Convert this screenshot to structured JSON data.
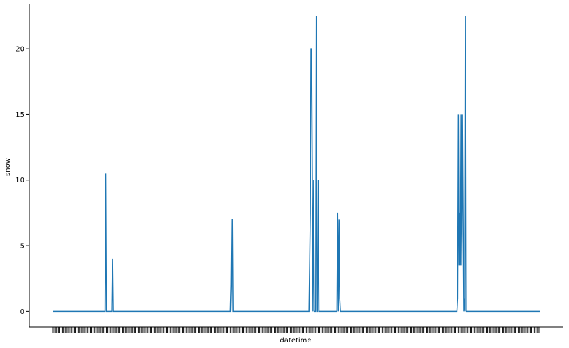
{
  "chart_data": {
    "type": "line",
    "title": "",
    "xlabel": "datetime",
    "ylabel": "snow",
    "ylim": [
      -1.2,
      23.4
    ],
    "yticks": [
      0,
      5,
      10,
      15,
      20
    ],
    "x_tick_count": 366,
    "series": [
      {
        "color": "#1f77b4",
        "x": [
          0,
          39,
          39.5,
          40,
          40.5,
          44,
          44.5,
          45,
          45.5,
          133,
          133.5,
          134,
          134.5,
          135,
          135.5,
          192,
          192.5,
          193,
          193.5,
          194,
          194.5,
          195,
          195.5,
          196,
          196.5,
          197,
          197.5,
          198,
          198.5,
          199,
          199.5,
          200,
          200.5,
          201,
          201.5,
          202,
          202.5,
          203,
          203.5,
          204,
          204.5,
          205,
          205.5,
          213,
          213.5,
          214,
          214.5,
          215,
          215.5,
          303,
          303.5,
          304,
          304.5,
          305,
          305.5,
          306,
          306.5,
          307,
          307.5,
          308,
          308.5,
          309,
          309.5,
          310,
          310.5,
          311,
          311.5,
          365
        ],
        "values": [
          0,
          0,
          10.5,
          0,
          0,
          0,
          4,
          0,
          0,
          0,
          2,
          7,
          7,
          0,
          0,
          0,
          3.5,
          7.5,
          20,
          20,
          10,
          0,
          10,
          0,
          0,
          0,
          22.5,
          0,
          0,
          10,
          0,
          0,
          0,
          0,
          0,
          0,
          0,
          0,
          0,
          0,
          0,
          0,
          0,
          0,
          7.5,
          0,
          7,
          1,
          0,
          0,
          1,
          15,
          3.5,
          7.5,
          3.5,
          15,
          3.5,
          15,
          7.5,
          0,
          1,
          0,
          22.5,
          0,
          0,
          0,
          0,
          0
        ]
      }
    ]
  }
}
